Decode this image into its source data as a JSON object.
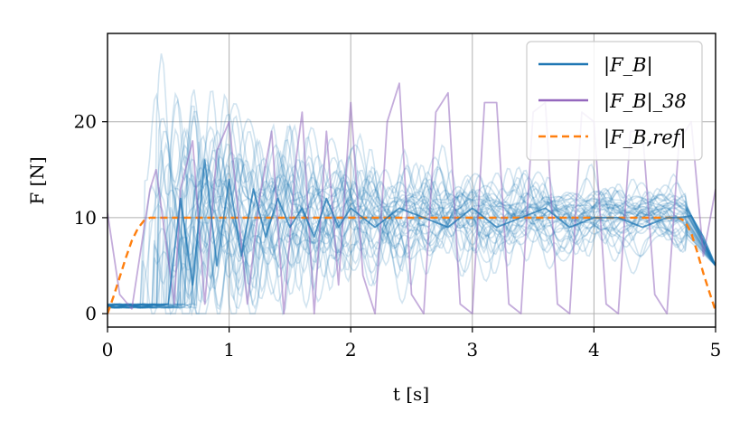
{
  "chart_data": {
    "type": "line",
    "xlabel": "t [s]",
    "ylabel": "F [N]",
    "xlim": [
      0,
      5
    ],
    "ylim": [
      -1.4,
      29.2
    ],
    "xticks": [
      0,
      1,
      2,
      3,
      4,
      5
    ],
    "yticks": [
      0,
      10,
      20
    ],
    "grid": true,
    "legend_position": "top-right",
    "legend": [
      {
        "label": "|F_B|",
        "color": "#1f77b4",
        "style": "solid"
      },
      {
        "label": "|F_B|_38",
        "color": "#9467bd",
        "style": "solid"
      },
      {
        "label": "|F_B,ref|",
        "color": "#ff7f0e",
        "style": "dashed"
      }
    ],
    "series": [
      {
        "name": "|F_B,ref|",
        "color": "#ff7f0e",
        "style": "dashed",
        "x": [
          0,
          0.05,
          0.1,
          0.15,
          0.2,
          0.25,
          0.3,
          0.35,
          0.4,
          0.5,
          1.0,
          2.0,
          3.0,
          4.0,
          4.6,
          4.7,
          4.75,
          4.8,
          4.85,
          4.9,
          4.95,
          5.0
        ],
        "y": [
          0,
          1.8,
          3.8,
          5.8,
          7.6,
          8.9,
          9.7,
          10,
          10,
          10,
          10,
          10,
          10,
          10,
          10,
          10,
          9.6,
          8.4,
          6.4,
          4.2,
          2.2,
          0.3
        ]
      },
      {
        "name": "|F_B|_38",
        "color": "#9467bd",
        "style": "solid",
        "x": [
          0,
          0.1,
          0.2,
          0.35,
          0.4,
          0.55,
          0.6,
          0.7,
          0.8,
          0.9,
          1.0,
          1.15,
          1.25,
          1.35,
          1.45,
          1.55,
          1.6,
          1.7,
          1.8,
          1.9,
          2.0,
          2.1,
          2.2,
          2.3,
          2.4,
          2.5,
          2.6,
          2.7,
          2.8,
          2.9,
          3.0,
          3.1,
          3.2,
          3.3,
          3.4,
          3.5,
          3.6,
          3.7,
          3.8,
          3.9,
          4.0,
          4.1,
          4.2,
          4.3,
          4.4,
          4.5,
          4.6,
          4.7,
          4.8,
          4.9,
          5.0
        ],
        "y": [
          10.5,
          2,
          0.5,
          13,
          15,
          1,
          13,
          18,
          1,
          17,
          20,
          1,
          12,
          19,
          0,
          16,
          21,
          0,
          19,
          3,
          22,
          4,
          0,
          20,
          24,
          2,
          0,
          21,
          23,
          1,
          0,
          22,
          22,
          1,
          0,
          21,
          22,
          1,
          0,
          21,
          20,
          1,
          0,
          19,
          19,
          2,
          0,
          18,
          20,
          6,
          13
        ]
      },
      {
        "name": "|F_B|",
        "color": "#1f77b4",
        "style": "solid",
        "x": [
          0,
          0.1,
          0.2,
          0.3,
          0.4,
          0.5,
          0.6,
          0.7,
          0.8,
          0.9,
          1.0,
          1.1,
          1.2,
          1.3,
          1.4,
          1.5,
          1.6,
          1.7,
          1.8,
          1.9,
          2.0,
          2.2,
          2.4,
          2.6,
          2.8,
          3.0,
          3.2,
          3.4,
          3.6,
          3.8,
          4.0,
          4.2,
          4.4,
          4.6,
          4.7,
          4.8,
          4.9,
          5.0
        ],
        "y": [
          0.8,
          1,
          0.8,
          1,
          0.9,
          1,
          12,
          3,
          16,
          5,
          14,
          6,
          13,
          8,
          12,
          9,
          11,
          8,
          12,
          9,
          11,
          9,
          11,
          10,
          9,
          11,
          9,
          10,
          11,
          9,
          10,
          10,
          9,
          10,
          10,
          10.2,
          8,
          5
        ]
      }
    ]
  }
}
